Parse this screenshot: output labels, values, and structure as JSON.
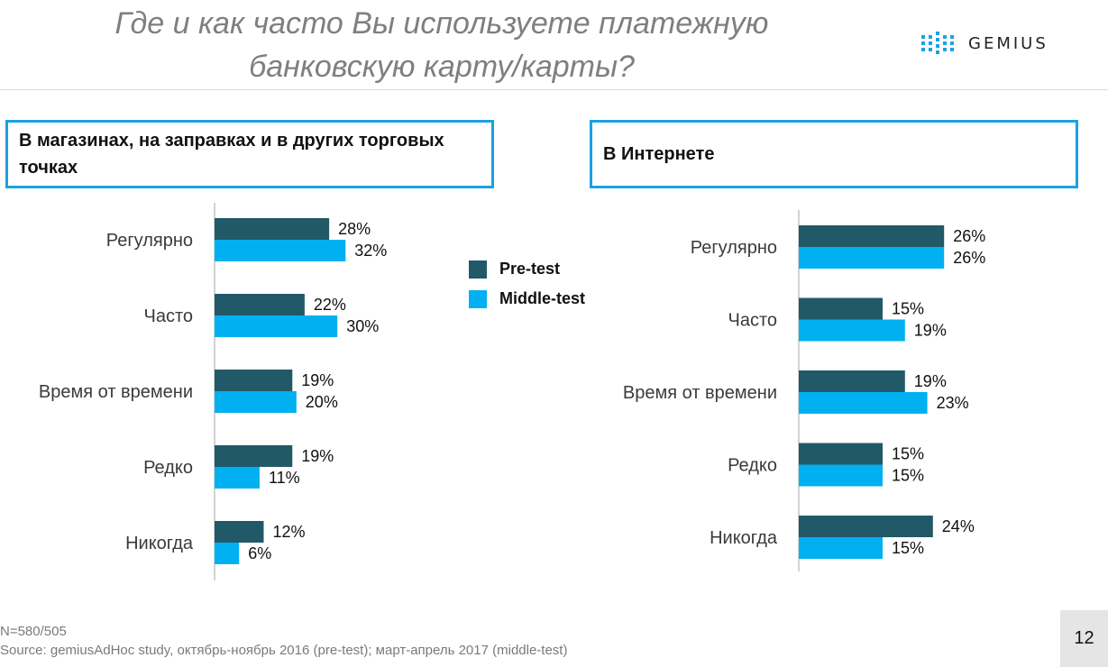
{
  "title": "Где и как часто Вы используете платежную банковскую карту/карты?",
  "logo": {
    "text": "GEMIUS"
  },
  "colors": {
    "pre_test": "#215968",
    "middle_test": "#00b0f0",
    "box_border": "#1ba1e2",
    "axis": "#a6a6a6"
  },
  "legend": {
    "pre_test": "Pre-test",
    "middle_test": "Middle-test"
  },
  "footnote": {
    "sample": "N=580/505",
    "source": "Source: gemiusAdHoc study, октябрь-ноябрь 2016 (pre-test); март-апрель 2017 (middle-test)"
  },
  "page_number": "12",
  "chart_data": [
    {
      "type": "bar",
      "orientation": "horizontal",
      "title": "В магазинах, на заправках и в других торговых точках",
      "categories": [
        "Регулярно",
        "Часто",
        "Время от времени",
        "Редко",
        "Никогда"
      ],
      "series": [
        {
          "name": "Pre-test",
          "values": [
            28,
            22,
            19,
            19,
            12
          ]
        },
        {
          "name": "Middle-test",
          "values": [
            32,
            30,
            20,
            11,
            6
          ]
        }
      ],
      "value_format": "%"
    },
    {
      "type": "bar",
      "orientation": "horizontal",
      "title": "В Интернете",
      "categories": [
        "Регулярно",
        "Часто",
        "Время от времени",
        "Редко",
        "Никогда"
      ],
      "series": [
        {
          "name": "Pre-test",
          "values": [
            26,
            15,
            19,
            15,
            24
          ]
        },
        {
          "name": "Middle-test",
          "values": [
            26,
            19,
            23,
            15,
            15
          ]
        }
      ],
      "value_format": "%"
    }
  ]
}
